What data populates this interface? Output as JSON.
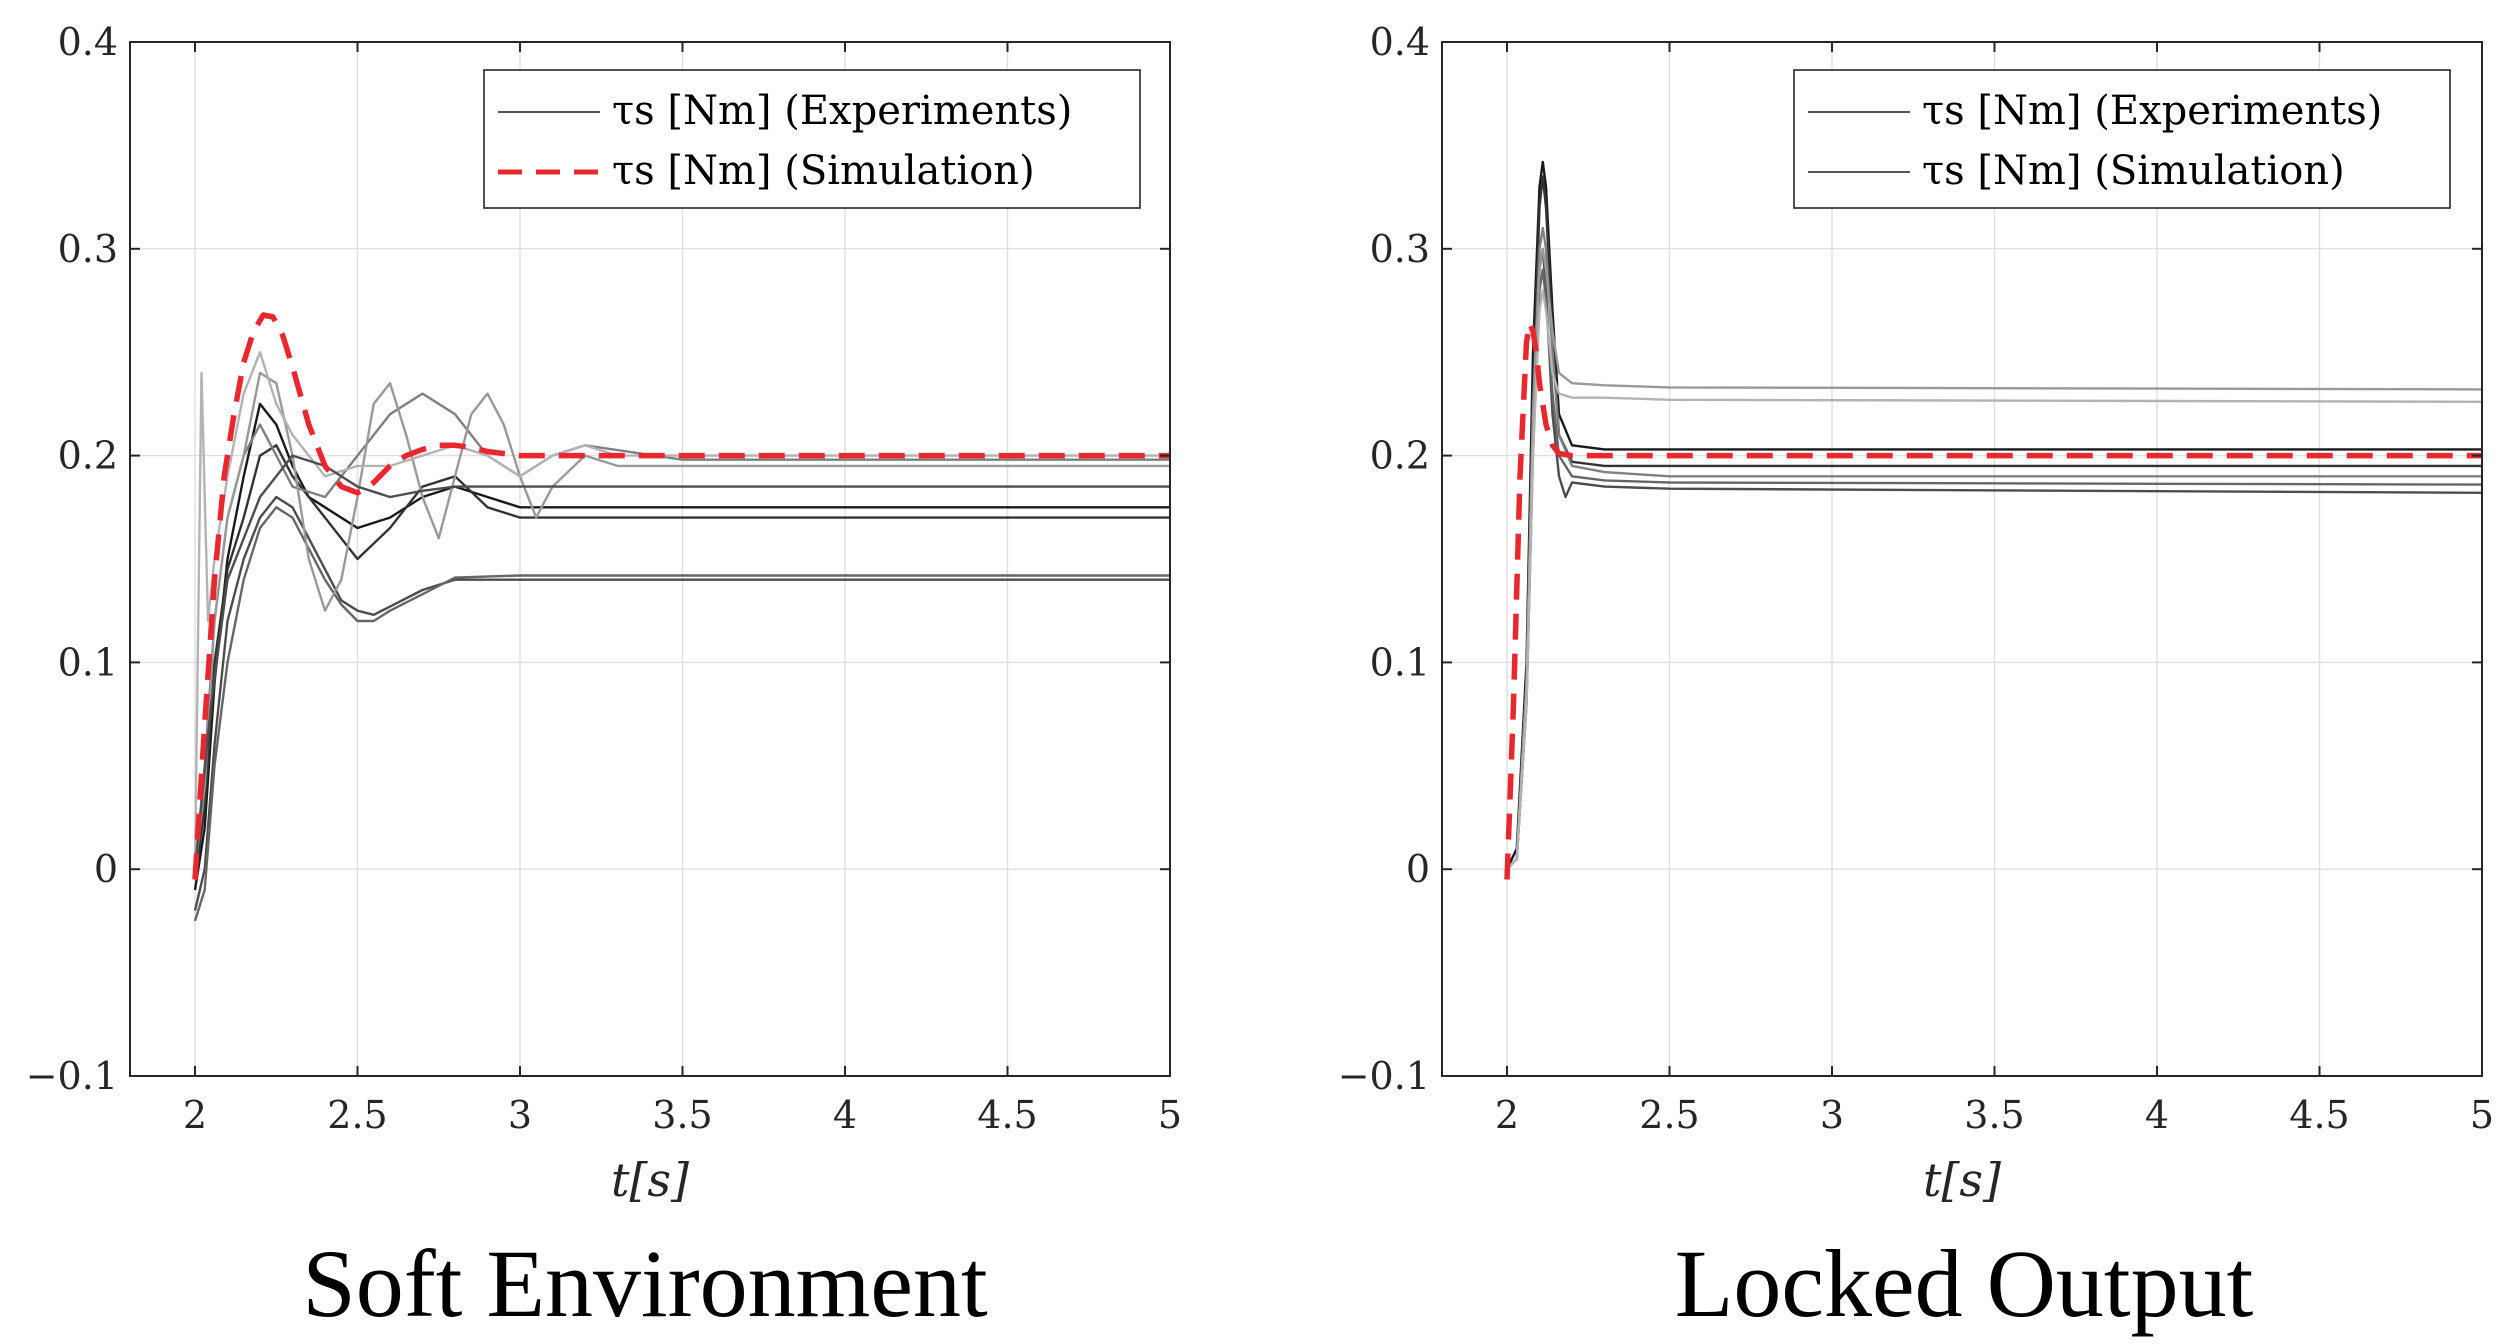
{
  "colors": {
    "experiment_shades": [
      "#1a1a1a",
      "#333333",
      "#4d4d4d",
      "#666666",
      "#808080",
      "#999999",
      "#b3b3b3"
    ],
    "simulation": "#e8282e",
    "grid": "#dfdfdf",
    "axis": "#262626"
  },
  "chart_data": [
    {
      "type": "line",
      "title": "Soft Environment",
      "xlabel": "t[s]",
      "ylabel": "",
      "xlim": [
        1.8,
        5
      ],
      "ylim": [
        -0.1,
        0.4
      ],
      "xticks": [
        2,
        2.5,
        3,
        3.5,
        4,
        4.5,
        5
      ],
      "xtick_labels": [
        "2",
        "2.5",
        "3",
        "3.5",
        "4",
        "4.5",
        "5"
      ],
      "yticks": [
        -0.1,
        0,
        0.1,
        0.2,
        0.3,
        0.4
      ],
      "ytick_labels": [
        "−0.1",
        "0",
        "0.1",
        "0.2",
        "0.3",
        "0.4"
      ],
      "grid": true,
      "legend": {
        "location": "top-right",
        "entries": [
          {
            "label": "τs [Nm] (Experiments)",
            "style": "solid-thin"
          },
          {
            "label": "τs [Nm] (Simulation)",
            "style": "dashed-red"
          }
        ]
      },
      "experiments": [
        {
          "name": "exp1",
          "shade": 0,
          "x": [
            2.0,
            2.03,
            2.06,
            2.1,
            2.15,
            2.2,
            2.25,
            2.3,
            2.35,
            2.4,
            2.5,
            2.6,
            2.7,
            2.8,
            2.9,
            3.0,
            3.2,
            3.5,
            5.0
          ],
          "y": [
            -0.01,
            0.02,
            0.09,
            0.15,
            0.19,
            0.225,
            0.215,
            0.195,
            0.18,
            0.175,
            0.165,
            0.17,
            0.18,
            0.185,
            0.18,
            0.175,
            0.175,
            0.175,
            0.175
          ]
        },
        {
          "name": "exp2",
          "shade": 1,
          "x": [
            2.0,
            2.03,
            2.06,
            2.1,
            2.15,
            2.2,
            2.25,
            2.3,
            2.4,
            2.5,
            2.6,
            2.7,
            2.8,
            2.9,
            3.0,
            3.2,
            3.5,
            5.0
          ],
          "y": [
            -0.005,
            0.03,
            0.1,
            0.145,
            0.17,
            0.2,
            0.205,
            0.19,
            0.17,
            0.15,
            0.165,
            0.185,
            0.19,
            0.175,
            0.17,
            0.17,
            0.17,
            0.17
          ]
        },
        {
          "name": "exp3",
          "shade": 2,
          "x": [
            2.0,
            2.03,
            2.06,
            2.1,
            2.15,
            2.2,
            2.25,
            2.3,
            2.35,
            2.4,
            2.45,
            2.5,
            2.55,
            2.6,
            2.7,
            2.8,
            3.0,
            3.5,
            5.0
          ],
          "y": [
            -0.02,
            0.0,
            0.06,
            0.12,
            0.15,
            0.17,
            0.18,
            0.175,
            0.16,
            0.145,
            0.13,
            0.125,
            0.123,
            0.127,
            0.135,
            0.14,
            0.14,
            0.14,
            0.14
          ]
        },
        {
          "name": "exp4",
          "shade": 3,
          "x": [
            2.0,
            2.03,
            2.06,
            2.1,
            2.15,
            2.2,
            2.25,
            2.3,
            2.35,
            2.4,
            2.45,
            2.5,
            2.55,
            2.6,
            2.7,
            2.8,
            3.0,
            3.5,
            5.0
          ],
          "y": [
            -0.025,
            -0.01,
            0.05,
            0.1,
            0.14,
            0.165,
            0.175,
            0.17,
            0.155,
            0.14,
            0.128,
            0.12,
            0.12,
            0.125,
            0.133,
            0.141,
            0.142,
            0.142,
            0.142
          ]
        },
        {
          "name": "exp5",
          "shade": 4,
          "x": [
            2.0,
            2.03,
            2.06,
            2.1,
            2.15,
            2.2,
            2.25,
            2.3,
            2.4,
            2.5,
            2.6,
            2.7,
            2.8,
            2.9,
            3.0,
            3.1,
            3.2,
            3.5,
            5.0
          ],
          "y": [
            0.0,
            0.05,
            0.12,
            0.17,
            0.2,
            0.215,
            0.2,
            0.185,
            0.18,
            0.2,
            0.22,
            0.23,
            0.22,
            0.2,
            0.19,
            0.2,
            0.205,
            0.198,
            0.198
          ]
        },
        {
          "name": "exp6",
          "shade": 5,
          "x": [
            2.0,
            2.03,
            2.06,
            2.1,
            2.15,
            2.2,
            2.25,
            2.3,
            2.35,
            2.4,
            2.45,
            2.5,
            2.55,
            2.6,
            2.65,
            2.7,
            2.75,
            2.8,
            2.85,
            2.9,
            2.95,
            3.0,
            3.05,
            3.1,
            3.2,
            3.3,
            3.5,
            5.0
          ],
          "y": [
            0.0,
            0.04,
            0.12,
            0.17,
            0.2,
            0.24,
            0.235,
            0.2,
            0.15,
            0.125,
            0.14,
            0.18,
            0.225,
            0.235,
            0.21,
            0.18,
            0.16,
            0.19,
            0.22,
            0.23,
            0.215,
            0.19,
            0.17,
            0.185,
            0.2,
            0.195,
            0.195,
            0.195
          ]
        },
        {
          "name": "exp7",
          "shade": 6,
          "x": [
            2.0,
            2.02,
            2.04,
            2.06,
            2.1,
            2.15,
            2.2,
            2.25,
            2.3,
            2.35,
            2.4,
            2.5,
            2.6,
            2.7,
            2.8,
            2.9,
            3.0,
            3.1,
            3.2,
            3.3,
            3.4,
            3.5,
            5.0
          ],
          "y": [
            0.0,
            0.24,
            0.12,
            0.15,
            0.19,
            0.23,
            0.25,
            0.225,
            0.21,
            0.2,
            0.19,
            0.195,
            0.195,
            0.2,
            0.205,
            0.2,
            0.19,
            0.2,
            0.205,
            0.2,
            0.2,
            0.2,
            0.2
          ]
        },
        {
          "name": "exp8",
          "shade": 2,
          "x": [
            2.0,
            2.05,
            2.1,
            2.2,
            2.3,
            2.4,
            2.5,
            2.6,
            2.7,
            2.8,
            2.9,
            3.0,
            3.5,
            5.0
          ],
          "y": [
            0.0,
            0.08,
            0.14,
            0.18,
            0.2,
            0.195,
            0.185,
            0.18,
            0.183,
            0.185,
            0.185,
            0.185,
            0.185,
            0.185
          ]
        }
      ],
      "simulation": {
        "name": "simulation",
        "x": [
          2.0,
          2.03,
          2.06,
          2.09,
          2.12,
          2.15,
          2.18,
          2.21,
          2.24,
          2.27,
          2.3,
          2.35,
          2.4,
          2.45,
          2.5,
          2.55,
          2.6,
          2.65,
          2.7,
          2.75,
          2.8,
          2.85,
          2.9,
          2.95,
          3.0,
          3.1,
          3.2,
          3.3,
          5.0
        ],
        "y": [
          -0.005,
          0.07,
          0.14,
          0.19,
          0.22,
          0.245,
          0.26,
          0.268,
          0.267,
          0.258,
          0.243,
          0.215,
          0.195,
          0.185,
          0.182,
          0.187,
          0.195,
          0.2,
          0.203,
          0.205,
          0.205,
          0.204,
          0.202,
          0.201,
          0.2,
          0.2,
          0.2,
          0.2,
          0.2
        ]
      }
    },
    {
      "type": "line",
      "title": "Locked Output",
      "xlabel": "t[s]",
      "ylabel": "",
      "xlim": [
        1.8,
        5
      ],
      "ylim": [
        -0.1,
        0.4
      ],
      "xticks": [
        2,
        2.5,
        3,
        3.5,
        4,
        4.5,
        5
      ],
      "xtick_labels": [
        "2",
        "2.5",
        "3",
        "3.5",
        "4",
        "4.5",
        "5"
      ],
      "yticks": [
        -0.1,
        0,
        0.1,
        0.2,
        0.3,
        0.4
      ],
      "ytick_labels": [
        "−0.1",
        "0",
        "0.1",
        "0.2",
        "0.3",
        "0.4"
      ],
      "grid": true,
      "legend": {
        "location": "top-right",
        "entries": [
          {
            "label": "τs [Nm] (Experiments)",
            "style": "solid-thin"
          },
          {
            "label": "τs [Nm] (Simulation)",
            "style": "solid-thin"
          }
        ]
      },
      "experiments": [
        {
          "name": "exp1",
          "shade": 0,
          "x": [
            2.0,
            2.03,
            2.06,
            2.08,
            2.1,
            2.11,
            2.12,
            2.14,
            2.16,
            2.2,
            2.3,
            2.5,
            5.0
          ],
          "y": [
            0.0,
            0.01,
            0.1,
            0.25,
            0.33,
            0.342,
            0.33,
            0.27,
            0.22,
            0.205,
            0.203,
            0.203,
            0.203
          ]
        },
        {
          "name": "exp2",
          "shade": 1,
          "x": [
            2.0,
            2.03,
            2.06,
            2.08,
            2.1,
            2.11,
            2.12,
            2.14,
            2.16,
            2.2,
            2.3,
            2.5,
            5.0
          ],
          "y": [
            0.0,
            0.005,
            0.09,
            0.23,
            0.32,
            0.335,
            0.32,
            0.26,
            0.21,
            0.197,
            0.195,
            0.195,
            0.195
          ]
        },
        {
          "name": "exp3",
          "shade": 2,
          "x": [
            2.0,
            2.03,
            2.06,
            2.08,
            2.1,
            2.11,
            2.12,
            2.14,
            2.16,
            2.18,
            2.2,
            2.3,
            2.5,
            5.0
          ],
          "y": [
            0.0,
            0.005,
            0.08,
            0.2,
            0.29,
            0.3,
            0.28,
            0.22,
            0.19,
            0.18,
            0.187,
            0.185,
            0.184,
            0.182
          ]
        },
        {
          "name": "exp4",
          "shade": 3,
          "x": [
            2.0,
            2.03,
            2.06,
            2.08,
            2.1,
            2.11,
            2.12,
            2.14,
            2.16,
            2.2,
            2.3,
            2.5,
            5.0
          ],
          "y": [
            0.0,
            0.005,
            0.08,
            0.21,
            0.28,
            0.29,
            0.275,
            0.23,
            0.2,
            0.19,
            0.188,
            0.187,
            0.186
          ]
        },
        {
          "name": "exp5",
          "shade": 4,
          "x": [
            2.0,
            2.03,
            2.06,
            2.08,
            2.1,
            2.11,
            2.12,
            2.14,
            2.16,
            2.2,
            2.3,
            2.5,
            5.0
          ],
          "y": [
            0.0,
            0.005,
            0.09,
            0.22,
            0.3,
            0.31,
            0.3,
            0.25,
            0.21,
            0.195,
            0.192,
            0.19,
            0.19
          ]
        },
        {
          "name": "exp6",
          "shade": 5,
          "x": [
            2.0,
            2.03,
            2.06,
            2.08,
            2.1,
            2.11,
            2.12,
            2.14,
            2.16,
            2.2,
            2.3,
            2.5,
            5.0
          ],
          "y": [
            0.0,
            0.005,
            0.09,
            0.22,
            0.29,
            0.3,
            0.29,
            0.26,
            0.24,
            0.235,
            0.234,
            0.233,
            0.232
          ]
        },
        {
          "name": "exp7",
          "shade": 6,
          "x": [
            2.0,
            2.03,
            2.06,
            2.08,
            2.1,
            2.11,
            2.12,
            2.14,
            2.16,
            2.2,
            2.3,
            2.5,
            5.0
          ],
          "y": [
            0.0,
            0.005,
            0.08,
            0.2,
            0.27,
            0.28,
            0.27,
            0.24,
            0.23,
            0.228,
            0.228,
            0.227,
            0.226
          ]
        }
      ],
      "simulation": {
        "name": "simulation",
        "x": [
          2.0,
          2.02,
          2.04,
          2.06,
          2.07,
          2.08,
          2.09,
          2.1,
          2.12,
          2.14,
          2.16,
          2.2,
          2.3,
          5.0
        ],
        "y": [
          -0.005,
          0.08,
          0.19,
          0.255,
          0.264,
          0.26,
          0.25,
          0.235,
          0.215,
          0.205,
          0.201,
          0.2,
          0.2,
          0.2
        ]
      }
    }
  ]
}
